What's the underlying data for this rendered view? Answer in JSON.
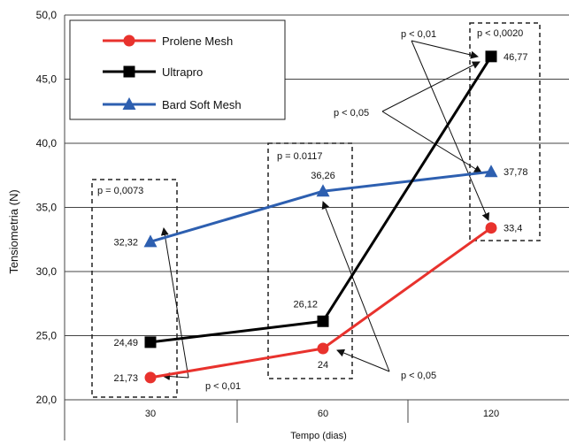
{
  "chart_data": {
    "type": "line",
    "title": "",
    "xlabel": "Tempo (dias)",
    "ylabel": "Tensiometria (N)",
    "categories": [
      "30",
      "60",
      "120"
    ],
    "ylim": [
      20,
      50
    ],
    "yticks": [
      20,
      25,
      30,
      35,
      40,
      45,
      50
    ],
    "ytick_labels": [
      "20,0",
      "25,0",
      "30,0",
      "35,0",
      "40,0",
      "45,0",
      "50,0"
    ],
    "grid": true,
    "legend_position": "top-left",
    "series": [
      {
        "name": "Prolene Mesh",
        "color": "#e8322d",
        "marker": "circle",
        "values": [
          21.73,
          24,
          33.4
        ],
        "labels": [
          "21,73",
          "24",
          "33,4"
        ]
      },
      {
        "name": "Ultrapro",
        "color": "#000000",
        "marker": "square",
        "values": [
          24.49,
          26.12,
          46.77
        ],
        "labels": [
          "24,49",
          "26,12",
          "46,77"
        ]
      },
      {
        "name": "Bard Soft Mesh",
        "color": "#2d5fb0",
        "marker": "triangle",
        "values": [
          32.32,
          36.26,
          37.78
        ],
        "labels": [
          "32,32",
          "36,26",
          "37,78"
        ]
      }
    ],
    "annotations": {
      "box_labels": [
        "p = 0,0073",
        "p = 0.0117",
        "p < 0,0020"
      ],
      "pvalue_labels": [
        "p < 0,01",
        "p < 0,05",
        "p < 0,05",
        "p < 0,01"
      ]
    }
  }
}
